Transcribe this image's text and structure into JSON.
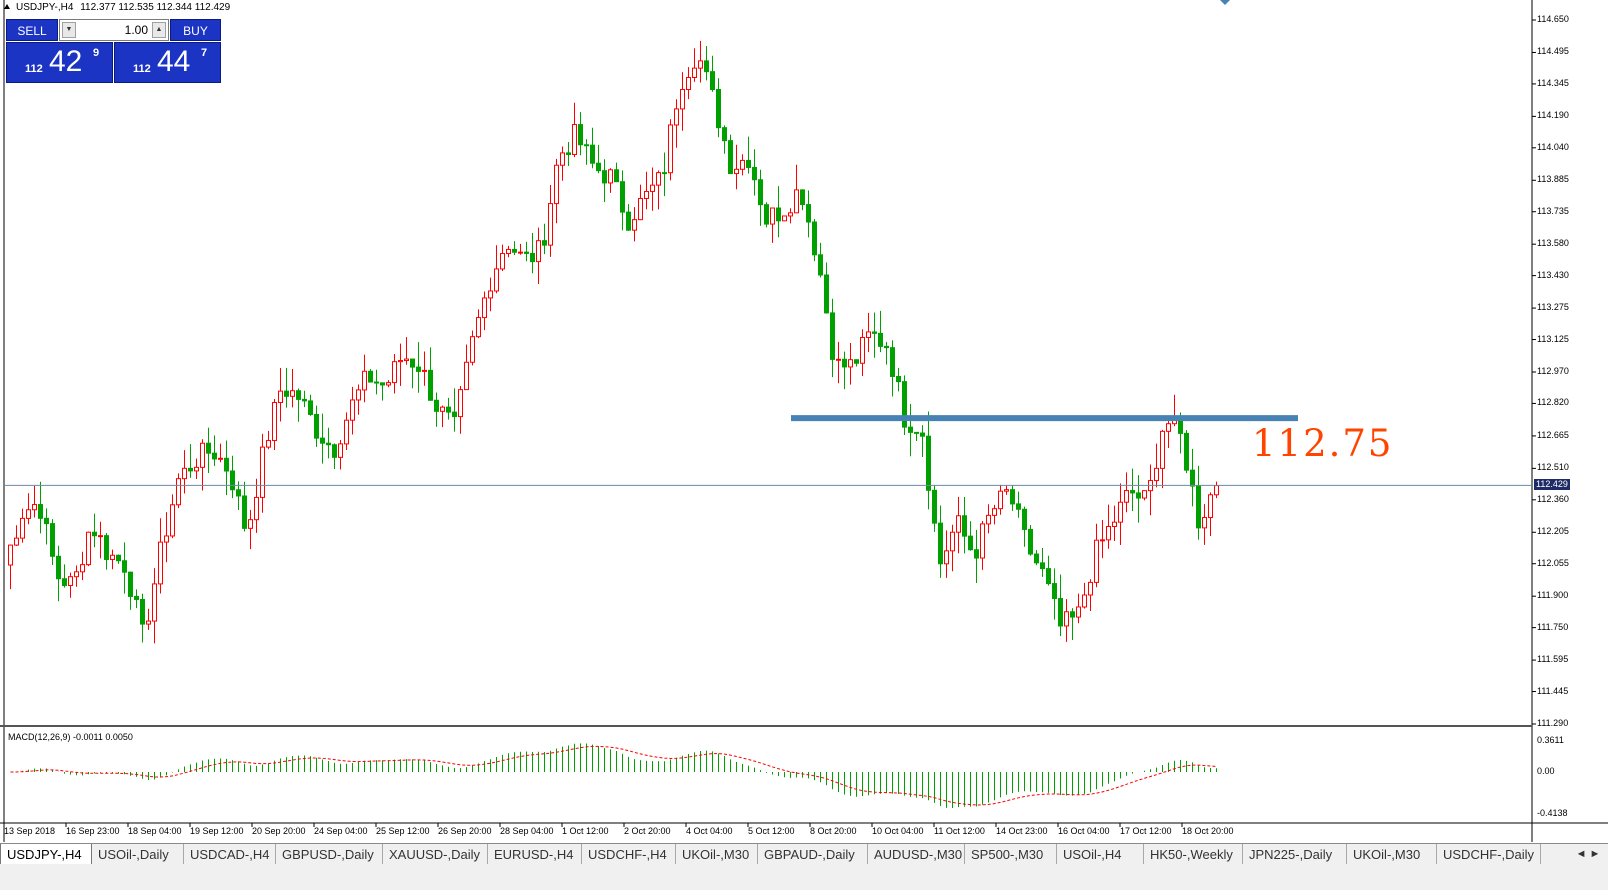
{
  "header": {
    "symbol": "USDJPY-,H4",
    "ohlc": "112.377 112.535 112.344 112.429"
  },
  "trade_panel": {
    "sell_label": "SELL",
    "buy_label": "BUY",
    "lot_value": "1.00",
    "sell_price_prefix": "112",
    "sell_price_big": "42",
    "sell_price_sup": "9",
    "buy_price_prefix": "112",
    "buy_price_big": "44",
    "buy_price_sup": "7"
  },
  "price_axis": {
    "labels": [
      "114.650",
      "114.495",
      "114.345",
      "114.190",
      "114.040",
      "113.885",
      "113.735",
      "113.580",
      "113.430",
      "113.275",
      "113.125",
      "112.970",
      "112.820",
      "112.665",
      "112.510",
      "112.360",
      "112.205",
      "112.055",
      "111.900",
      "111.750",
      "111.595",
      "111.445",
      "111.290"
    ],
    "current_price": "112.429"
  },
  "time_axis": {
    "labels": [
      "13 Sep 2018",
      "16 Sep 23:00",
      "18 Sep 04:00",
      "19 Sep 12:00",
      "20 Sep 20:00",
      "24 Sep 04:00",
      "25 Sep 12:00",
      "26 Sep 20:00",
      "28 Sep 04:00",
      "1 Oct 12:00",
      "2 Oct 20:00",
      "4 Oct 04:00",
      "5 Oct 12:00",
      "8 Oct 20:00",
      "10 Oct 04:00",
      "11 Oct 12:00",
      "14 Oct 23:00",
      "16 Oct 04:00",
      "17 Oct 12:00",
      "18 Oct 20:00"
    ]
  },
  "annotation": {
    "level_text": "112.75",
    "level_color": "#ff4400",
    "line_color": "#4682b4"
  },
  "macd": {
    "label": "MACD(12,26,9) -0.0011 0.0050",
    "axis_labels": [
      "0.3611",
      "0.00",
      "-0.4138"
    ]
  },
  "tabs": [
    "USDJPY-,H4",
    "USOil-,Daily",
    "USDCAD-,H4",
    "GBPUSD-,Daily",
    "XAUUSD-,Daily",
    "EURUSD-,H4",
    "USDCHF-,H4",
    "UKOil-,M30",
    "GBPAUD-,Daily",
    "AUDUSD-,M30",
    "SP500-,M30",
    "USOil-,H4",
    "HK50-,Weekly",
    "JPN225-,Daily",
    "UKOil-,M30",
    "USDCHF-,Daily"
  ],
  "active_tab": 0,
  "chart_data": {
    "type": "candlestick",
    "colors": {
      "up": "#ff0000",
      "down": "#00a000",
      "grid": "none"
    },
    "ylim": [
      111.29,
      114.65
    ],
    "price_path": [
      112.05,
      112.3,
      112.35,
      112.0,
      111.95,
      112.25,
      112.1,
      112.05,
      111.7,
      112.1,
      112.45,
      112.55,
      112.6,
      112.5,
      112.2,
      112.6,
      112.9,
      112.85,
      112.7,
      112.6,
      112.8,
      112.95,
      112.9,
      113.05,
      113.0,
      112.8,
      112.7,
      113.1,
      113.4,
      113.6,
      113.5,
      113.55,
      114.0,
      114.1,
      113.95,
      113.9,
      113.7,
      113.8,
      113.9,
      114.35,
      114.5,
      114.25,
      113.95,
      114.0,
      113.7,
      113.75,
      113.85,
      113.5,
      113.0,
      113.0,
      113.15,
      113.1,
      112.75,
      112.7,
      112.05,
      112.25,
      112.1,
      112.3,
      112.4,
      112.15,
      112.0,
      111.75,
      111.8,
      112.1,
      112.25,
      112.4,
      112.35,
      112.75,
      112.65,
      112.25,
      112.45
    ],
    "resistance_level": 112.75
  }
}
